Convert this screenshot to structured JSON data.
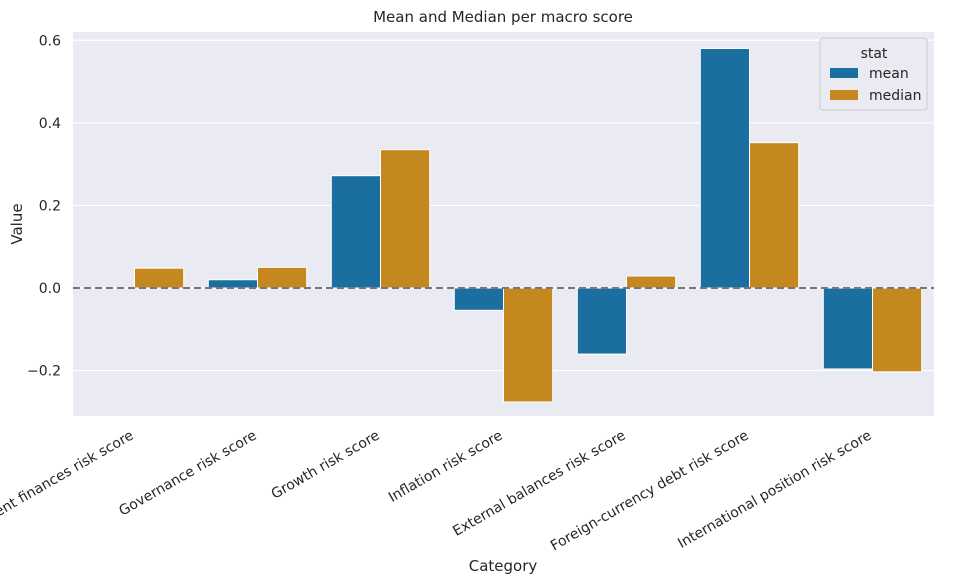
{
  "chart_data": {
    "type": "bar",
    "title": "Mean and Median per macro score",
    "xlabel": "Category",
    "ylabel": "Value",
    "ylim": [
      -0.31,
      0.62
    ],
    "yticks": [
      -0.2,
      0.0,
      0.2,
      0.4,
      0.6
    ],
    "ytick_labels": [
      "−0.2",
      "0.0",
      "0.2",
      "0.4",
      "0.6"
    ],
    "grid": true,
    "reference_line": 0.0,
    "categories": [
      "Government finances risk score",
      "Governance risk score",
      "Growth risk score",
      "Inflation risk score",
      "External balances risk score",
      "Foreign-currency debt risk score",
      "International position risk score"
    ],
    "series": [
      {
        "name": "mean",
        "color": "#1a6fa0",
        "values": [
          0.0,
          0.02,
          0.272,
          -0.054,
          -0.16,
          0.58,
          -0.196
        ]
      },
      {
        "name": "median",
        "color": "#c4881f",
        "values": [
          0.048,
          0.05,
          0.335,
          -0.276,
          0.029,
          0.352,
          -0.203
        ]
      }
    ],
    "legend": {
      "title": "stat",
      "position": "top-right"
    }
  }
}
